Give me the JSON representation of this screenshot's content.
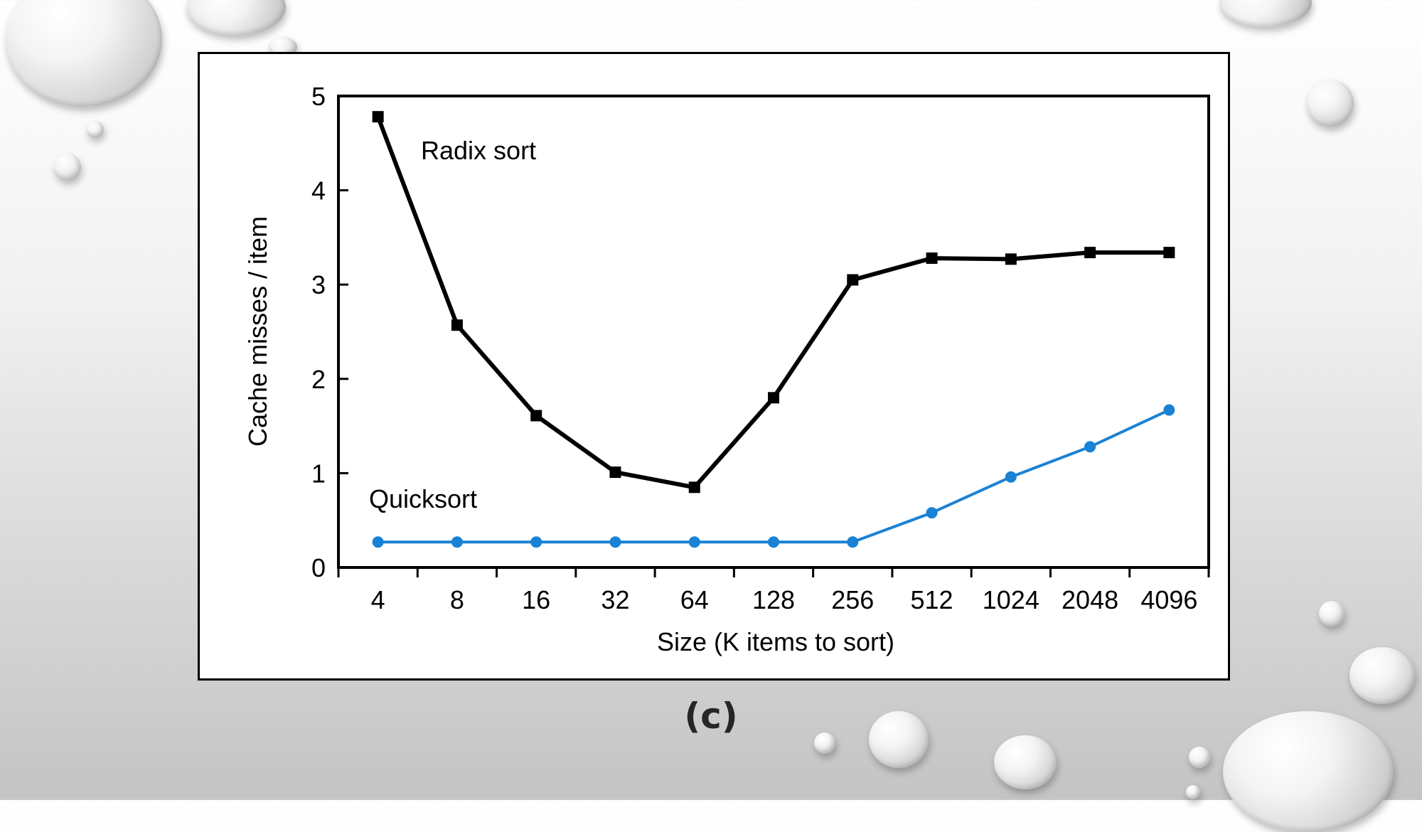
{
  "caption": "(c)",
  "chart_data": {
    "type": "line",
    "xlabel": "Size (K items to sort)",
    "ylabel": "Cache misses / item",
    "categories": [
      "4",
      "8",
      "16",
      "32",
      "64",
      "128",
      "256",
      "512",
      "1024",
      "2048",
      "4096"
    ],
    "ylim": [
      0,
      5
    ],
    "yticks": [
      0,
      1,
      2,
      3,
      4,
      5
    ],
    "grid": false,
    "series": [
      {
        "name": "Radix sort",
        "color": "#000000",
        "marker": "square",
        "values": [
          4.78,
          2.57,
          1.61,
          1.01,
          0.85,
          1.8,
          3.05,
          3.28,
          3.27,
          3.34,
          3.34
        ]
      },
      {
        "name": "Quicksort",
        "color": "#1a82d4",
        "marker": "circle",
        "values": [
          0.27,
          0.27,
          0.27,
          0.27,
          0.27,
          0.27,
          0.27,
          0.58,
          0.96,
          1.28,
          1.67
        ]
      }
    ]
  }
}
